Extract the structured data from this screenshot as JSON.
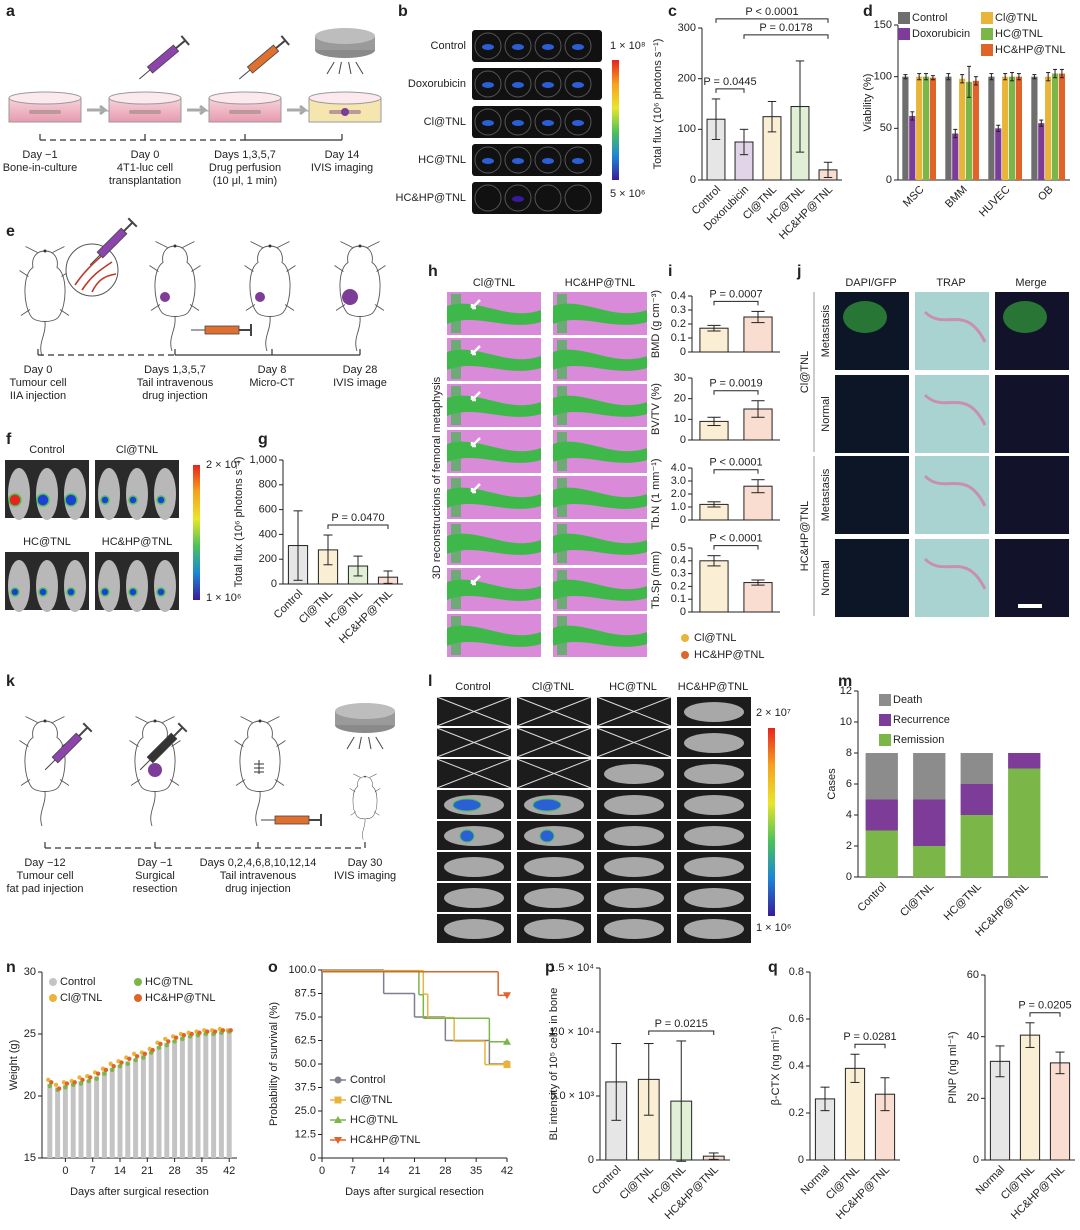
{
  "figure": {
    "panel_labels": [
      "a",
      "b",
      "c",
      "d",
      "e",
      "f",
      "g",
      "h",
      "i",
      "j",
      "k",
      "l",
      "m",
      "n",
      "o",
      "p",
      "q"
    ],
    "a_steps": [
      [
        "Day −1",
        "Bone-in-culture"
      ],
      [
        "Day 0",
        "4T1-luc cell",
        "transplantation"
      ],
      [
        "Days 1,3,5,7",
        "Drug perfusion",
        "(10 μl, 1 min)"
      ],
      [
        "Day 14",
        "IVIS imaging"
      ]
    ],
    "b": {
      "rows": [
        "Control",
        "Doxorubicin",
        "Cl@TNL",
        "HC@TNL",
        "HC&HP@TNL"
      ],
      "scale": [
        "1 × 10⁸",
        "5 × 10⁶"
      ]
    },
    "e_steps": [
      [
        "Day 0",
        "Tumour cell",
        "IIA injection"
      ],
      [
        "Days 1,3,5,7",
        "Tail intravenous",
        "drug injection"
      ],
      [
        "Day 8",
        "Micro-CT"
      ],
      [
        "Day 28",
        "IVIS image"
      ]
    ],
    "f": {
      "groups": [
        "Control",
        "Cl@TNL",
        "HC@TNL",
        "HC&HP@TNL"
      ],
      "scale": [
        "2 × 10⁷",
        "1 × 10⁶"
      ]
    },
    "h": {
      "columns": [
        "Cl@TNL",
        "HC&HP@TNL"
      ],
      "ylabel": "3D reconstructions of femoral metaphysis"
    },
    "i_legend": {
      "labels": [
        "Cl@TNL",
        "HC&HP@TNL"
      ],
      "colors": [
        "#e9b43a",
        "#e0642a"
      ]
    },
    "j": {
      "columns": [
        "DAPI/GFP",
        "TRAP",
        "Merge"
      ],
      "rows": [
        "Metastasis",
        "Normal",
        "Metastasis",
        "Normal"
      ],
      "groups": [
        "Cl@TNL",
        "HC&HP@TNL"
      ]
    },
    "k_steps": [
      [
        "Day −12",
        "Tumour cell",
        "fat pad injection"
      ],
      [
        "Day −1",
        "Surgical",
        "resection"
      ],
      [
        "Days 0,2,4,6,8,10,12,14",
        "Tail intravenous",
        "drug injection"
      ],
      [
        "Day 30",
        "IVIS imaging"
      ]
    ],
    "l": {
      "columns": [
        "Control",
        "Cl@TNL",
        "HC@TNL",
        "HC&HP@TNL"
      ],
      "scale": [
        "2 × 10⁷",
        "1 × 10⁶"
      ]
    }
  },
  "chart_data": [
    {
      "type": "bar",
      "categories": [
        "Control",
        "Doxorubicin",
        "Cl@TNL",
        "HC@TNL",
        "HC&HP@TNL"
      ],
      "values": [
        120,
        75,
        125,
        145,
        20
      ],
      "errors": [
        40,
        25,
        30,
        90,
        15
      ],
      "colors": [
        "#8c8c8c",
        "#7d3c98",
        "#e9b43a",
        "#7ab648",
        "#e0642a"
      ],
      "ylabel": "Total flux (10⁶ photons s⁻¹)",
      "ylim": [
        0,
        300
      ],
      "yticks": [
        0,
        100,
        200,
        300
      ],
      "annotations": [
        {
          "text": "P = 0.0445",
          "span": [
            0,
            1
          ]
        },
        {
          "text": "P = 0.0178",
          "span": [
            1,
            4
          ]
        },
        {
          "text": "P < 0.0001",
          "span": [
            0,
            4
          ]
        }
      ]
    },
    {
      "type": "bar",
      "categories": [
        "MSC",
        "BMM",
        "HUVEC",
        "OB"
      ],
      "ylabel": "Viability (%)",
      "ylim": [
        0,
        150
      ],
      "yticks": [
        0,
        50,
        100,
        150
      ],
      "series": [
        {
          "name": "Control",
          "color": "#6e6e6e",
          "values": [
            100,
            100,
            100,
            100
          ],
          "errors": [
            2,
            3,
            3,
            2
          ]
        },
        {
          "name": "Doxorubicin",
          "color": "#7d3c98",
          "values": [
            62,
            45,
            50,
            55
          ],
          "errors": [
            4,
            4,
            3,
            3
          ]
        },
        {
          "name": "Cl@TNL",
          "color": "#e9b43a",
          "values": [
            100,
            98,
            100,
            100
          ],
          "errors": [
            3,
            4,
            3,
            4
          ]
        },
        {
          "name": "HC@TNL",
          "color": "#7ab648",
          "values": [
            100,
            95,
            100,
            103
          ],
          "errors": [
            3,
            15,
            4,
            4
          ]
        },
        {
          "name": "HC&HP@TNL",
          "color": "#e0642a",
          "values": [
            99,
            96,
            100,
            103
          ],
          "errors": [
            2,
            4,
            3,
            4
          ]
        }
      ]
    },
    {
      "type": "bar",
      "categories": [
        "Control",
        "Cl@TNL",
        "HC@TNL",
        "HC&HP@TNL"
      ],
      "values": [
        310,
        275,
        145,
        55
      ],
      "errors": [
        280,
        120,
        80,
        50
      ],
      "colors": [
        "#8c8c8c",
        "#e9b43a",
        "#7ab648",
        "#e0642a"
      ],
      "ylabel": "Total flux (10⁶ photons s⁻¹)",
      "ylim": [
        0,
        1000
      ],
      "yticks": [
        0,
        200,
        400,
        600,
        800,
        {
          "value": 1000,
          "label": "1,000"
        }
      ],
      "annotations": [
        {
          "text": "P = 0.0470",
          "span": [
            1,
            3
          ]
        }
      ]
    },
    {
      "type": "bar",
      "categories": [
        null,
        null
      ],
      "values": [
        0.17,
        0.25
      ],
      "errors": [
        0.02,
        0.04
      ],
      "colors": [
        "#e9b43a",
        "#e0642a"
      ],
      "ylabel": "BMD (g cm⁻³)",
      "ylim": [
        0,
        0.4
      ],
      "yticks": [
        0,
        0.1,
        0.2,
        0.3,
        0.4
      ],
      "annotations": [
        {
          "text": "P = 0.0007",
          "span": [
            0,
            1
          ]
        }
      ]
    },
    {
      "type": "bar",
      "categories": [
        null,
        null
      ],
      "values": [
        9,
        15
      ],
      "errors": [
        2,
        4
      ],
      "colors": [
        "#e9b43a",
        "#e0642a"
      ],
      "ylabel": "BV/TV (%)",
      "ylim": [
        0,
        30
      ],
      "yticks": [
        0,
        10,
        20,
        30
      ],
      "annotations": [
        {
          "text": "P = 0.0019",
          "span": [
            0,
            1
          ]
        }
      ]
    },
    {
      "type": "bar",
      "categories": [
        null,
        null
      ],
      "values": [
        1.2,
        2.6
      ],
      "errors": [
        0.2,
        0.5
      ],
      "colors": [
        "#e9b43a",
        "#e0642a"
      ],
      "ylabel": "Tb.N (1 mm⁻¹)",
      "ylim": [
        0,
        4
      ],
      "yticks": [
        0,
        {
          "value": 1,
          "label": "1.0"
        },
        {
          "value": 2,
          "label": "2.0"
        },
        {
          "value": 3,
          "label": "3.0"
        },
        {
          "value": 4,
          "label": "4.0"
        }
      ],
      "annotations": [
        {
          "text": "P < 0.0001",
          "span": [
            0,
            1
          ]
        }
      ]
    },
    {
      "type": "bar",
      "categories": [
        null,
        null
      ],
      "values": [
        0.4,
        0.23
      ],
      "errors": [
        0.04,
        0.02
      ],
      "colors": [
        "#e9b43a",
        "#e0642a"
      ],
      "ylabel": "Tb.Sp (mm)",
      "ylim": [
        0,
        0.5
      ],
      "yticks": [
        0,
        0.1,
        0.2,
        0.3,
        0.4,
        0.5
      ],
      "annotations": [
        {
          "text": "P < 0.0001",
          "span": [
            0,
            1
          ]
        }
      ]
    },
    {
      "type": "bar",
      "stacked": true,
      "categories": [
        "Control",
        "Cl@TNL",
        "HC@TNL",
        "HC&HP@TNL"
      ],
      "ylabel": "Cases",
      "ylim": [
        0,
        12
      ],
      "yticks": [
        0,
        2,
        4,
        6,
        8,
        10,
        12
      ],
      "series": [
        {
          "name": "Remission",
          "color": "#7ab648",
          "values": [
            3,
            2,
            4,
            7
          ]
        },
        {
          "name": "Recurrence",
          "color": "#7d3c98",
          "values": [
            2,
            3,
            2,
            1
          ]
        },
        {
          "name": "Death",
          "color": "#8c8c8c",
          "values": [
            3,
            3,
            2,
            0
          ]
        }
      ]
    },
    {
      "type": "scatter",
      "x": [
        -4,
        -2,
        0,
        2,
        4,
        6,
        8,
        10,
        12,
        14,
        16,
        18,
        20,
        22,
        24,
        26,
        28,
        30,
        32,
        34,
        36,
        38,
        40,
        42
      ],
      "xlabel": "Days after surgical resection",
      "ylabel": "Weight (g)",
      "xlim": [
        -6,
        44
      ],
      "xticks": [
        0,
        7,
        14,
        21,
        28,
        35,
        42
      ],
      "ylim": [
        15,
        30
      ],
      "yticks": [
        15,
        20,
        25,
        30
      ],
      "series": [
        {
          "name": "Control",
          "color": "#c4c4c4",
          "values": [
            21.0,
            20.7,
            20.9,
            21.0,
            21.2,
            21.3,
            21.6,
            22.0,
            22.3,
            22.5,
            22.8,
            23.0,
            23.3,
            23.6,
            24.0,
            24.3,
            24.5,
            24.8,
            24.9,
            25.0,
            25.1,
            25.1,
            25.2,
            25.2
          ]
        },
        {
          "name": "Cl@TNL",
          "color": "#e9b43a",
          "values": [
            21.3,
            20.9,
            21.1,
            21.2,
            21.5,
            21.6,
            21.9,
            22.2,
            22.6,
            22.8,
            23.1,
            23.4,
            23.5,
            23.8,
            24.3,
            24.6,
            24.8,
            25.0,
            25.1,
            25.2,
            25.3,
            25.3,
            25.4,
            25.3
          ]
        },
        {
          "name": "HC@TNL",
          "color": "#7ab648",
          "values": [
            20.8,
            20.5,
            20.7,
            20.9,
            21.0,
            21.2,
            21.4,
            21.8,
            22.1,
            22.4,
            22.6,
            22.9,
            23.1,
            23.5,
            23.9,
            24.1,
            24.4,
            24.6,
            24.8,
            24.9,
            25.0,
            25.0,
            25.1,
            25.2
          ]
        },
        {
          "name": "HC&HP@TNL",
          "color": "#e0642a",
          "values": [
            21.1,
            20.6,
            21.0,
            21.1,
            21.3,
            21.5,
            21.8,
            22.1,
            22.4,
            22.7,
            23.0,
            23.2,
            23.4,
            23.7,
            24.2,
            24.4,
            24.7,
            24.9,
            25.0,
            25.1,
            25.2,
            25.2,
            25.3,
            25.3
          ]
        }
      ]
    },
    {
      "type": "line",
      "step": true,
      "xlabel": "Days after surgical resection",
      "ylabel": "Probability of survival (%)",
      "xlim": [
        0,
        42
      ],
      "xticks": [
        0,
        7,
        14,
        21,
        28,
        35,
        42
      ],
      "ylim": [
        0,
        100
      ],
      "yticks": [
        0,
        12.5,
        {
          "value": 25,
          "label": "25.0"
        },
        37.5,
        {
          "value": 50,
          "label": "50.0"
        },
        62.5,
        {
          "value": 75,
          "label": "75.0"
        },
        87.5,
        {
          "value": 100,
          "label": "100.0"
        }
      ],
      "series": [
        {
          "name": "Control",
          "color": "#7f7f8f",
          "x": [
            0,
            14,
            21,
            28,
            38,
            42
          ],
          "values": [
            100,
            87.5,
            75,
            62.5,
            50,
            50
          ]
        },
        {
          "name": "Cl@TNL",
          "color": "#e9b43a",
          "x": [
            0,
            23,
            24,
            30,
            37,
            42
          ],
          "values": [
            100,
            87.5,
            75,
            62.5,
            50,
            50
          ]
        },
        {
          "name": "HC@TNL",
          "color": "#7ab648",
          "x": [
            0,
            22,
            23,
            38,
            42
          ],
          "values": [
            100,
            87.5,
            75,
            62.5,
            62.5
          ]
        },
        {
          "name": "HC&HP@TNL",
          "color": "#e0642a",
          "x": [
            0,
            40,
            42
          ],
          "values": [
            100,
            87.5,
            87.5
          ]
        }
      ]
    },
    {
      "type": "bar",
      "categories": [
        "Control",
        "Cl@TNL",
        "HC@TNL",
        "HC&HP@TNL"
      ],
      "values": [
        6100,
        6300,
        4600,
        300
      ],
      "errors": [
        3000,
        2800,
        4700,
        250
      ],
      "colors": [
        "#8c8c8c",
        "#e9b43a",
        "#7ab648",
        "#e0642a"
      ],
      "ylabel": "BL intensity of 10⁵ cells in bone",
      "ylim": [
        0,
        15000
      ],
      "yticks": [
        0,
        {
          "value": 5000,
          "label": "5.0 × 10³"
        },
        {
          "value": 10000,
          "label": "1.0 × 10⁴"
        },
        {
          "value": 15000,
          "label": "1.5 × 10⁴"
        }
      ],
      "annotations": [
        {
          "text": "P = 0.0215",
          "span": [
            1,
            3
          ]
        }
      ]
    },
    {
      "type": "bar",
      "categories": [
        "Normal",
        "Cl@TNL",
        "HC&HP@TNL"
      ],
      "values": [
        0.26,
        0.39,
        0.28
      ],
      "errors": [
        0.05,
        0.06,
        0.07
      ],
      "colors": [
        "#8c8c8c",
        "#e9b43a",
        "#e0642a"
      ],
      "ylabel": "β-CTX (ng ml⁻¹)",
      "ylim": [
        0,
        0.8
      ],
      "yticks": [
        0,
        0.2,
        0.4,
        0.6,
        0.8
      ],
      "annotations": [
        {
          "text": "P = 0.0281",
          "span": [
            1,
            2
          ]
        }
      ]
    },
    {
      "type": "bar",
      "categories": [
        "Normal",
        "Cl@TNL",
        "HC&HP@TNL"
      ],
      "values": [
        32,
        40.5,
        31.5
      ],
      "errors": [
        5,
        4,
        3.5
      ],
      "colors": [
        "#8c8c8c",
        "#e9b43a",
        "#e0642a"
      ],
      "ylabel": "PINP (ng ml⁻¹)",
      "ylim": [
        0,
        60
      ],
      "yticks": [
        0,
        20,
        40,
        60
      ],
      "annotations": [
        {
          "text": "P = 0.0205",
          "span": [
            1,
            2
          ]
        }
      ]
    }
  ]
}
